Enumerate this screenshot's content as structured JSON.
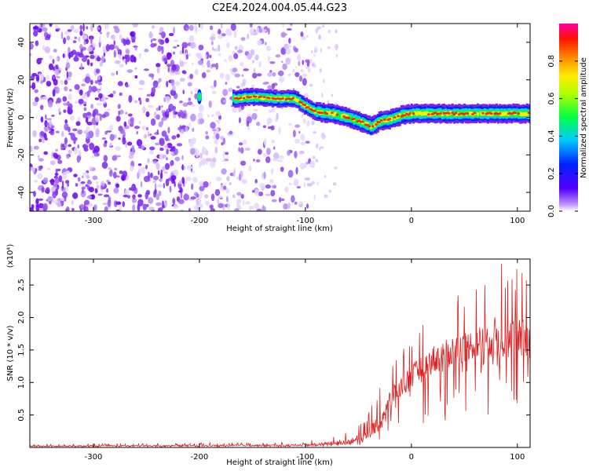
{
  "title": "C2E4.2024.004.05.44.G23",
  "colors": {
    "snr_line": "#e02020",
    "spectrogram_scatter": "#7a22ee",
    "colorbar_stops": [
      "#ffffff",
      "#6600ff",
      "#0000ff",
      "#00ffff",
      "#00ff00",
      "#ffff00",
      "#ff8800",
      "#ff0000",
      "#ff00ff"
    ]
  },
  "chart_data": [
    {
      "type": "heatmap",
      "name": "spectrogram",
      "xlabel": "Height of straight line (km)",
      "ylabel": "Frequency (Hz)",
      "xlim": [
        -360,
        112
      ],
      "ylim": [
        -50,
        50
      ],
      "xticks": [
        -300,
        -200,
        -100,
        0,
        100
      ],
      "yticks": [
        -40,
        -20,
        0,
        20,
        40
      ],
      "colorbar": {
        "label": "Normalized spectral amplitude",
        "range": [
          0,
          1
        ],
        "ticks": [
          0.0,
          0.2,
          0.4,
          0.6,
          0.8
        ]
      },
      "ridge": {
        "description_values": "dominant frequency (Hz) vs height (km)",
        "x": [
          -200,
          -165,
          -150,
          -130,
          -110,
          -100,
          -90,
          -75,
          -60,
          -45,
          -38,
          -30,
          -20,
          -10,
          0,
          20,
          40,
          60,
          80,
          100,
          112
        ],
        "y": [
          11,
          10,
          11,
          10,
          10,
          6,
          3,
          2,
          0,
          -3,
          -5,
          -2,
          -1,
          1,
          2,
          2,
          2,
          2,
          2,
          2,
          2
        ]
      },
      "noise_region_km": [
        -360,
        -95
      ]
    },
    {
      "type": "line",
      "name": "snr",
      "xlabel": "Height of straight line (km)",
      "ylabel": "SNR (10 * v/v)",
      "scale_label": "(x10⁴)",
      "xlim": [
        -360,
        112
      ],
      "ylim": [
        0,
        2.9
      ],
      "xticks": [
        -300,
        -200,
        -100,
        0,
        100
      ],
      "yticks": [
        0.5,
        1.0,
        1.5,
        2.0,
        2.5
      ],
      "envelope": {
        "x": [
          -360,
          -120,
          -90,
          -60,
          -45,
          -30,
          -20,
          -10,
          0,
          20,
          40,
          60,
          80,
          100,
          112
        ],
        "mean": [
          0.02,
          0.03,
          0.04,
          0.08,
          0.15,
          0.35,
          0.7,
          0.9,
          1.05,
          1.3,
          1.45,
          1.55,
          1.65,
          1.6,
          1.6
        ],
        "peak": [
          0.05,
          0.08,
          0.12,
          0.25,
          0.4,
          0.9,
          1.4,
          1.5,
          1.8,
          2.2,
          2.4,
          2.5,
          2.9,
          2.9,
          2.8
        ]
      }
    }
  ],
  "labels": {
    "xlabel_top": "Height of straight line (km)",
    "xlabel_bottom": "Height of straight line (km)",
    "ylabel_top": "Frequency (Hz)",
    "ylabel_bottom": "SNR (10 * v/v)",
    "scale_bottom": "(x10⁴)",
    "colorbar_label": "Normalized spectral amplitude"
  }
}
